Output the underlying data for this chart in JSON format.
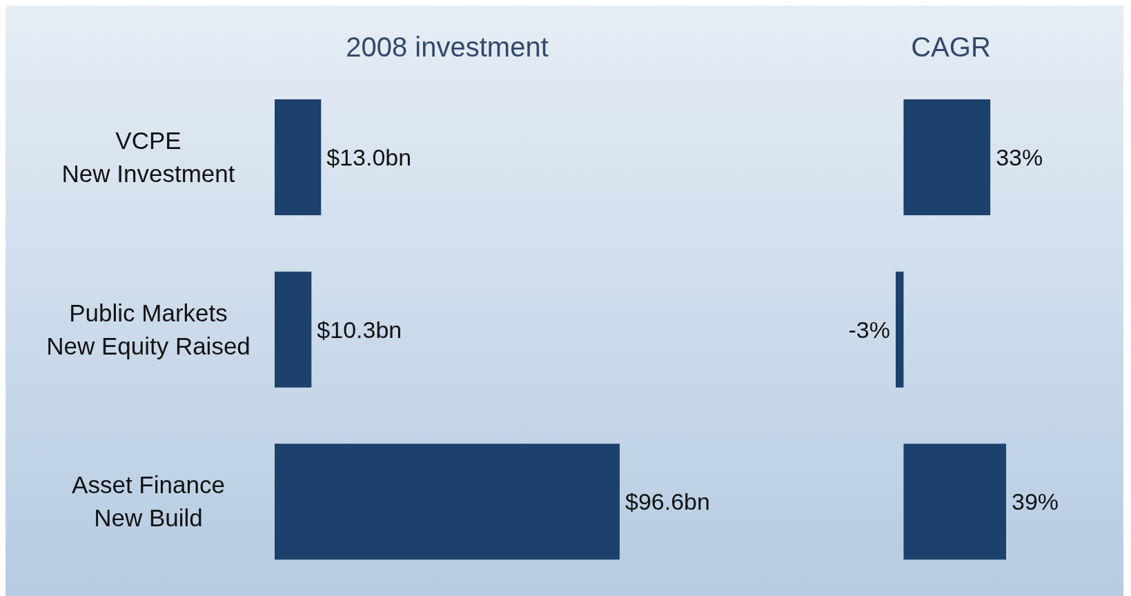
{
  "chart_data": [
    {
      "type": "bar",
      "orientation": "horizontal",
      "title": "2008 investment",
      "categories": [
        "VCPE\nNew Investment",
        "Public Markets\nNew Equity Raised",
        "Asset Finance\nNew Build"
      ],
      "values": [
        13.0,
        10.3,
        96.6
      ],
      "value_labels": [
        "$13.0bn",
        "$10.3bn",
        "$96.6bn"
      ],
      "color": "#1d416d"
    },
    {
      "type": "bar",
      "orientation": "horizontal",
      "title": "CAGR",
      "categories": [
        null,
        null,
        null
      ],
      "values": [
        33,
        -3,
        39
      ],
      "value_labels": [
        "33%",
        "-3%",
        "39%"
      ],
      "color": "#1d416d"
    }
  ]
}
